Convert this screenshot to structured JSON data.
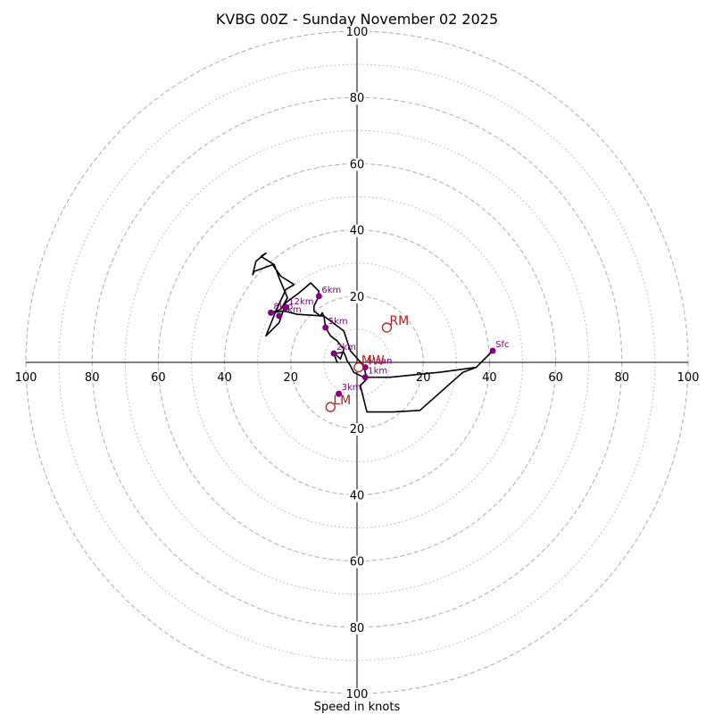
{
  "chart_data": {
    "type": "hodograph",
    "title": "KVBG 00Z - Sunday November 02 2025",
    "xlabel": "Speed in knots",
    "max_speed": 100,
    "rings_major": [
      20,
      40,
      60,
      80,
      100
    ],
    "rings_minor": [
      10,
      30,
      50,
      70,
      90
    ],
    "tick_labels": {
      "right": [
        "20",
        "40",
        "60",
        "80",
        "100"
      ],
      "left": [
        "20",
        "40",
        "60",
        "80",
        "100"
      ],
      "up": [
        "20",
        "40",
        "60",
        "80",
        "100"
      ],
      "down": [
        "20",
        "40",
        "60",
        "80",
        "100"
      ]
    },
    "trace": [
      [
        41,
        3.5
      ],
      [
        36,
        -1.5
      ],
      [
        25,
        -3
      ],
      [
        10,
        -4.5
      ],
      [
        2,
        -4.5
      ],
      [
        -1,
        -3
      ],
      [
        -2,
        -1
      ],
      [
        -3,
        0.5
      ],
      [
        -3.5,
        2
      ],
      [
        -4,
        3
      ],
      [
        -7,
        2.7
      ],
      [
        -6,
        0
      ],
      [
        -7,
        3
      ],
      [
        -5,
        1
      ],
      [
        -4,
        4
      ],
      [
        -6,
        6.5
      ],
      [
        -8,
        8
      ],
      [
        -9.5,
        10.5
      ],
      [
        -10,
        14
      ],
      [
        -10.5,
        15
      ],
      [
        -11,
        14
      ],
      [
        -13,
        15.5
      ],
      [
        -13,
        17
      ],
      [
        -12,
        19
      ],
      [
        -11.5,
        21.5
      ],
      [
        -14,
        24
      ],
      [
        -17.5,
        21
      ],
      [
        -21.5,
        18
      ],
      [
        -23.5,
        12
      ],
      [
        -27.5,
        8
      ],
      [
        -24.5,
        15.5
      ],
      [
        -21.5,
        22
      ],
      [
        -19,
        23.5
      ],
      [
        -23,
        26
      ],
      [
        -25.5,
        29.5
      ],
      [
        -31,
        27.5
      ],
      [
        -31.5,
        26.5
      ],
      [
        -30.5,
        30.5
      ],
      [
        -27.5,
        33
      ],
      [
        -29,
        32
      ],
      [
        -25,
        29.5
      ],
      [
        -23.5,
        25.5
      ],
      [
        -21,
        19.5
      ],
      [
        -23,
        16
      ],
      [
        -26,
        15
      ],
      [
        -22,
        15.5
      ],
      [
        -18,
        14.5
      ],
      [
        -10,
        14
      ],
      [
        -4,
        9.5
      ],
      [
        -2,
        3.5
      ],
      [
        2,
        -1
      ],
      [
        3,
        -5
      ],
      [
        1,
        -7
      ],
      [
        2,
        -11
      ],
      [
        3,
        -15
      ],
      [
        11,
        -15
      ],
      [
        19,
        -14.5
      ],
      [
        32,
        -3
      ],
      [
        36,
        -1.5
      ]
    ],
    "height_markers": [
      {
        "label": "Sfc",
        "u": 41,
        "v": 3.5
      },
      {
        "label": "1km",
        "u": 2.5,
        "v": -4.5
      },
      {
        "label": "2km",
        "u": -7,
        "v": 2.7
      },
      {
        "label": "3km",
        "u": -5.5,
        "v": -9.5
      },
      {
        "label": "5km",
        "u": -9.5,
        "v": 10.5
      },
      {
        "label": "6km",
        "u": -11.5,
        "v": 20
      },
      {
        "label": "7km",
        "u": -23.5,
        "v": 14
      },
      {
        "label": "8km",
        "u": -26,
        "v": 15
      },
      {
        "label": "12km",
        "u": -21.5,
        "v": 16.5
      },
      {
        "label": "Mean",
        "u": 2.5,
        "v": -1.5
      }
    ],
    "motion_markers": [
      {
        "label": "RM",
        "u": 9,
        "v": 10.5
      },
      {
        "label": "LM",
        "u": -8,
        "v": -13.5
      },
      {
        "label": "MW",
        "u": 0.5,
        "v": -1.5
      }
    ],
    "colors": {
      "trace": "#000000",
      "height_marker": "#800080",
      "motion_marker": "#b22222",
      "grid": "#b4b4b4",
      "axis": "#000000"
    }
  }
}
